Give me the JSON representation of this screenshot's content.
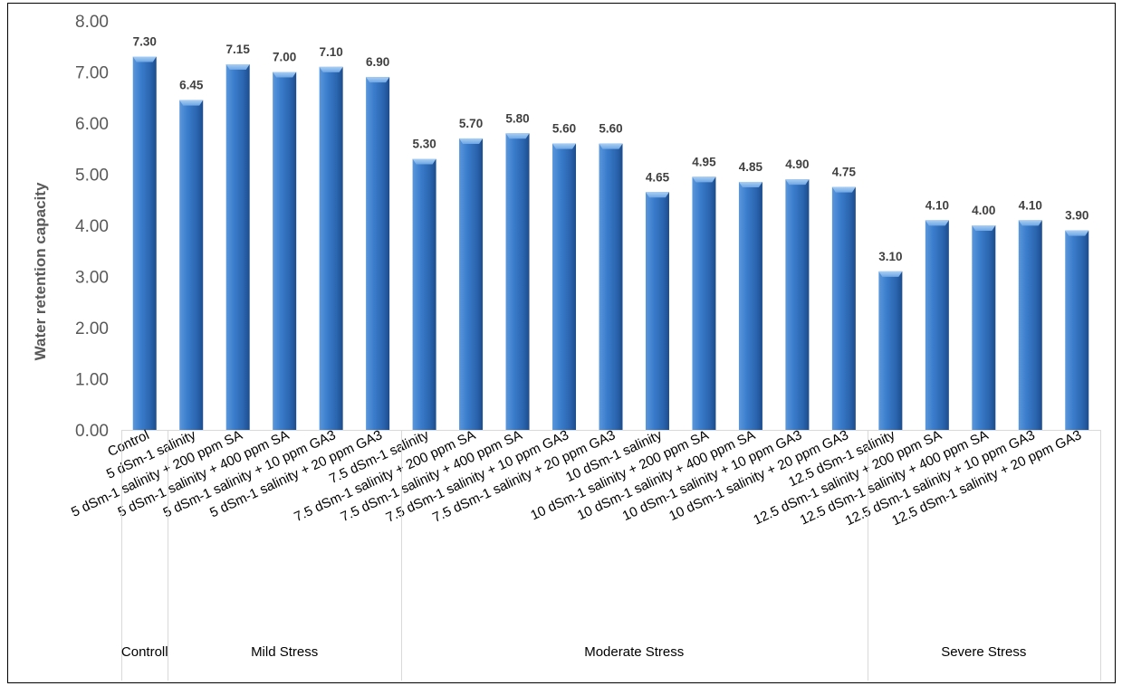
{
  "chart_data": {
    "type": "bar",
    "title": "",
    "xlabel": "",
    "ylabel": "Water retention capacity",
    "ylim": [
      0,
      8
    ],
    "yticks": [
      "0.00",
      "1.00",
      "2.00",
      "3.00",
      "4.00",
      "5.00",
      "6.00",
      "7.00",
      "8.00"
    ],
    "grid": false,
    "legend": "none",
    "bar_color": "#2E6DB8",
    "categories": [
      "Control",
      "5 dSm-1 salinity",
      "5 dSm-1 salinity + 200 ppm SA",
      "5 dSm-1 salinity + 400 ppm SA",
      "5 dSm-1 salinity + 10 ppm GA3",
      "5 dSm-1 salinity + 20 ppm GA3",
      "7.5 dSm-1 salinity",
      "7.5 dSm-1 salinity + 200 ppm SA",
      "7.5 dSm-1 salinity + 400 ppm SA",
      "7.5 dSm-1 salinity + 10 ppm GA3",
      "7.5 dSm-1 salinity + 20 ppm GA3",
      "10 dSm-1 salinity",
      "10 dSm-1 salinity + 200 ppm SA",
      "10 dSm-1 salinity + 400 ppm SA",
      "10 dSm-1 salinity + 10 ppm GA3",
      "10 dSm-1 salinity + 20 ppm GA3",
      "12.5 dSm-1 salinity",
      "12.5 dSm-1 salinity + 200 ppm SA",
      "12.5 dSm-1 salinity + 400 ppm SA",
      "12.5 dSm-1 salinity + 10 ppm GA3",
      "12.5 dSm-1 salinity + 20 ppm GA3"
    ],
    "values": [
      7.3,
      6.45,
      7.15,
      7.0,
      7.1,
      6.9,
      5.3,
      5.7,
      5.8,
      5.6,
      5.6,
      4.65,
      4.95,
      4.85,
      4.9,
      4.75,
      3.1,
      4.1,
      4.0,
      4.1,
      3.9
    ],
    "value_labels": [
      "7.30",
      "6.45",
      "7.15",
      "7.00",
      "7.10",
      "6.90",
      "5.30",
      "5.70",
      "5.80",
      "5.60",
      "5.60",
      "4.65",
      "4.95",
      "4.85",
      "4.90",
      "4.75",
      "3.10",
      "4.10",
      "4.00",
      "4.10",
      "3.90"
    ],
    "groups": [
      {
        "label": "Controll",
        "start": 0,
        "end": 0
      },
      {
        "label": "Mild Stress",
        "start": 1,
        "end": 5
      },
      {
        "label": "Moderate Stress",
        "start": 6,
        "end": 15
      },
      {
        "label": "Severe Stress",
        "start": 16,
        "end": 20
      }
    ]
  }
}
